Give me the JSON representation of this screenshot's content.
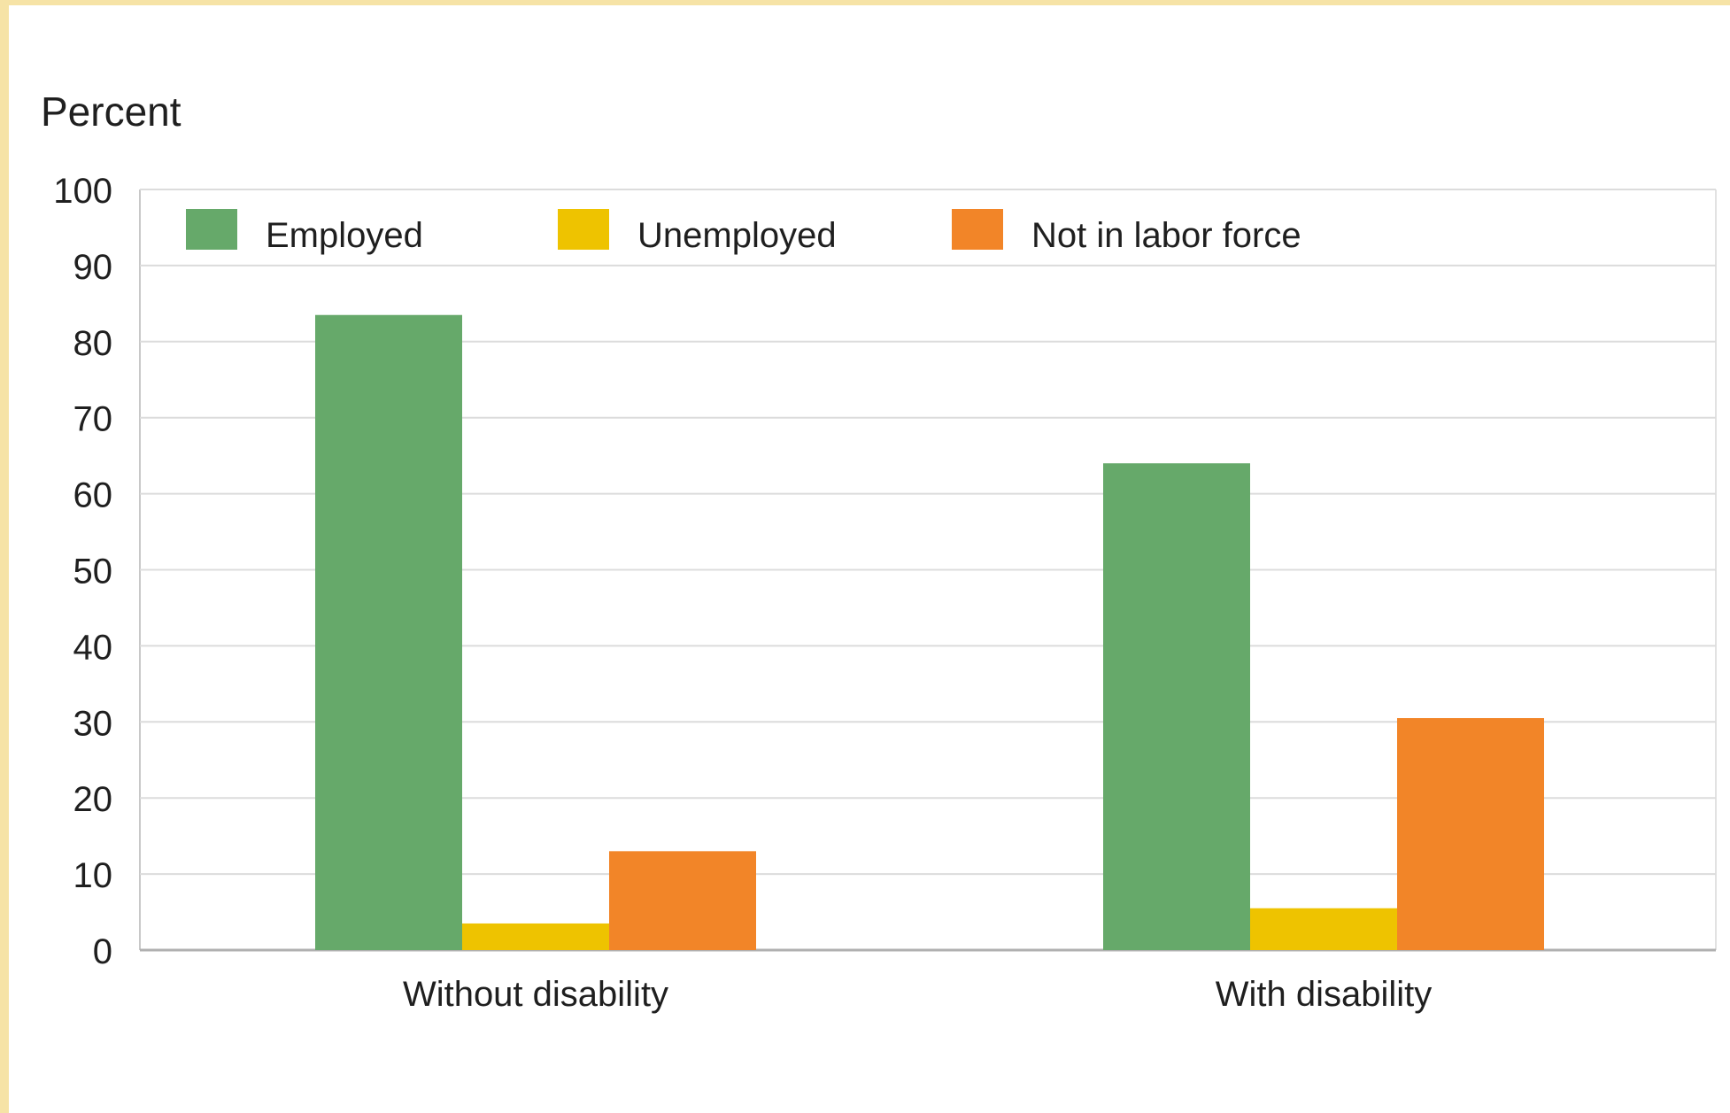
{
  "chart_data": {
    "type": "bar",
    "ylabel": "Percent",
    "ylim": [
      0,
      100
    ],
    "yticks": [
      0,
      10,
      20,
      30,
      40,
      50,
      60,
      70,
      80,
      90,
      100
    ],
    "grid": true,
    "legend_position": "top-left",
    "categories": [
      "Without disability",
      "With disability"
    ],
    "series": [
      {
        "name": "Employed",
        "color": "#66a96a",
        "values": [
          83.5,
          64
        ]
      },
      {
        "name": "Unemployed",
        "color": "#eec300",
        "values": [
          3.5,
          5.5
        ]
      },
      {
        "name": "Not in labor force",
        "color": "#f28528",
        "values": [
          13,
          30.5
        ]
      }
    ]
  }
}
